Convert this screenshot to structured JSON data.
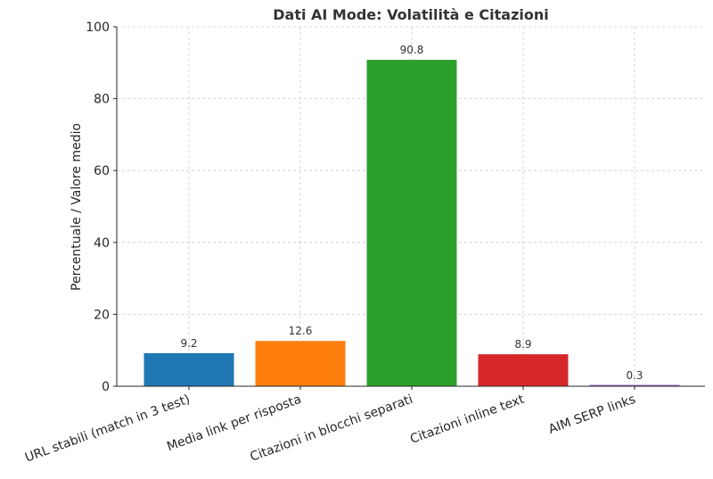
{
  "chart_data": {
    "type": "bar",
    "title": "Dati AI Mode: Volatilità e Citazioni",
    "xlabel": "",
    "ylabel": "Percentuale / Valore medio",
    "categories": [
      "URL stabili (match in 3 test)",
      "Media link per risposta",
      "Citazioni in blocchi separati",
      "Citazioni inline text",
      "AIM SERP links"
    ],
    "values": [
      9.2,
      12.6,
      90.8,
      8.9,
      0.3
    ],
    "value_labels": [
      "9.2",
      "12.6",
      "90.8",
      "8.9",
      "0.3"
    ],
    "colors": [
      "#1f77b4",
      "#ff7f0e",
      "#2ca02c",
      "#d62728",
      "#9467bd"
    ],
    "ylim": [
      0,
      100
    ],
    "yticks": [
      0,
      20,
      40,
      60,
      80,
      100
    ],
    "ytick_labels": [
      "0",
      "20",
      "40",
      "60",
      "80",
      "100"
    ],
    "grid": true,
    "legend": null
  }
}
